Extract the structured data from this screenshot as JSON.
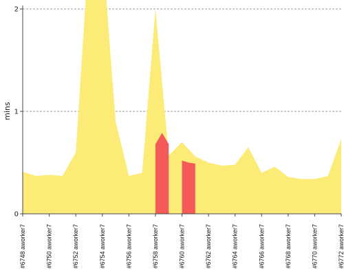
{
  "chart_data": {
    "type": "area",
    "ylabel": "mins",
    "ylim": [
      0,
      2.1
    ],
    "y_ticks": [
      0,
      1,
      2
    ],
    "grid": "horizontal-dashed",
    "colors": {
      "area": "#fdeb78",
      "highlight": "#f45a57",
      "grid": "#777777",
      "axis": "#444444"
    },
    "x_labels_shown": [
      "#6748 aworker7",
      "#6750 aworker7",
      "#6752 aworker7",
      "#6754 aworker7",
      "#6756 aworker7",
      "#6758 aworker7",
      "#6760 aworker7",
      "#6762 aworker7",
      "#6764 aworker7",
      "#6766 aworker7",
      "#6768 aworker7",
      "#6770 aworker7",
      "#6772 aworker7"
    ],
    "x": [
      6748,
      6749,
      6750,
      6751,
      6752,
      6753,
      6754,
      6755,
      6756,
      6757,
      6758,
      6759,
      6760,
      6761,
      6762,
      6763,
      6764,
      6765,
      6766,
      6767,
      6768,
      6769,
      6770,
      6771,
      6772
    ],
    "series": [
      {
        "values": [
          0.41,
          0.37,
          0.38,
          0.37,
          0.6,
          2.6,
          2.6,
          0.9,
          0.37,
          0.4,
          2.0,
          0.57,
          0.7,
          0.56,
          0.5,
          0.47,
          0.48,
          0.65,
          0.4,
          0.46,
          0.36,
          0.34,
          0.34,
          0.37,
          0.73
        ]
      }
    ],
    "highlights": [
      {
        "x_start": 6758,
        "x_end": 6759,
        "values": [
          0.68,
          0.79,
          0.68
        ]
      },
      {
        "x_start": 6760,
        "x_end": 6761,
        "values": [
          0.52,
          0.5,
          0.49
        ]
      }
    ]
  }
}
